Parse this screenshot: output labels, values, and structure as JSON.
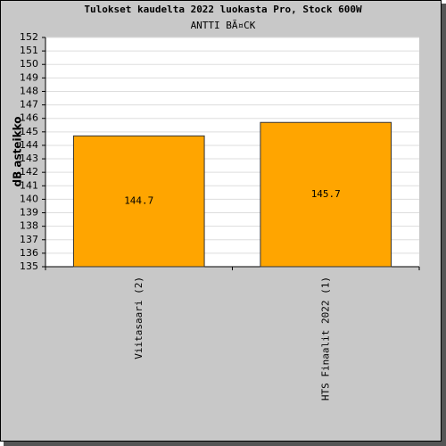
{
  "chart_data": {
    "type": "bar",
    "title": "Tulokset kaudelta 2022 luokasta Pro, Stock 600W",
    "subtitle": "ANTTI BÃ¤CK",
    "y_label": "dB asteikko",
    "categories": [
      "Viitasaari (2)",
      "HTS Finaalit 2022 (1)"
    ],
    "values": [
      144.7,
      145.7
    ],
    "color": "#ffa500",
    "ylim": [
      135,
      152
    ],
    "yticks": [
      135,
      136,
      137,
      138,
      139,
      140,
      141,
      142,
      143,
      144,
      145,
      146,
      147,
      148,
      149,
      150,
      151,
      152
    ],
    "grid": true
  }
}
